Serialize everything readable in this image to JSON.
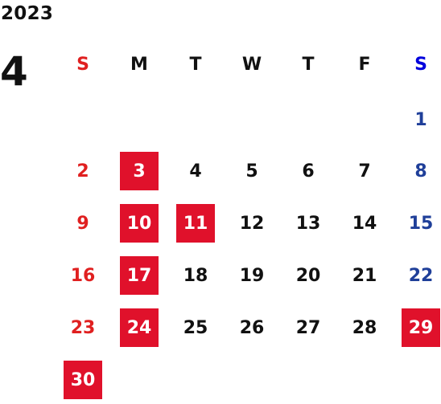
{
  "calendar": {
    "year": "2023",
    "month": "4",
    "weekdays": [
      "S",
      "M",
      "T",
      "W",
      "T",
      "F",
      "S"
    ],
    "weeks": [
      [
        {
          "d": "",
          "hl": false
        },
        {
          "d": "",
          "hl": false
        },
        {
          "d": "",
          "hl": false
        },
        {
          "d": "",
          "hl": false
        },
        {
          "d": "",
          "hl": false
        },
        {
          "d": "",
          "hl": false
        },
        {
          "d": "1",
          "hl": false
        }
      ],
      [
        {
          "d": "2",
          "hl": false
        },
        {
          "d": "3",
          "hl": true
        },
        {
          "d": "4",
          "hl": false
        },
        {
          "d": "5",
          "hl": false
        },
        {
          "d": "6",
          "hl": false
        },
        {
          "d": "7",
          "hl": false
        },
        {
          "d": "8",
          "hl": false
        }
      ],
      [
        {
          "d": "9",
          "hl": false
        },
        {
          "d": "10",
          "hl": true
        },
        {
          "d": "11",
          "hl": true
        },
        {
          "d": "12",
          "hl": false
        },
        {
          "d": "13",
          "hl": false
        },
        {
          "d": "14",
          "hl": false
        },
        {
          "d": "15",
          "hl": false
        }
      ],
      [
        {
          "d": "16",
          "hl": false
        },
        {
          "d": "17",
          "hl": true
        },
        {
          "d": "18",
          "hl": false
        },
        {
          "d": "19",
          "hl": false
        },
        {
          "d": "20",
          "hl": false
        },
        {
          "d": "21",
          "hl": false
        },
        {
          "d": "22",
          "hl": false
        }
      ],
      [
        {
          "d": "23",
          "hl": false
        },
        {
          "d": "24",
          "hl": true
        },
        {
          "d": "25",
          "hl": false
        },
        {
          "d": "26",
          "hl": false
        },
        {
          "d": "27",
          "hl": false
        },
        {
          "d": "28",
          "hl": false
        },
        {
          "d": "29",
          "hl": true
        }
      ],
      [
        {
          "d": "30",
          "hl": true
        },
        {
          "d": "",
          "hl": false
        },
        {
          "d": "",
          "hl": false
        },
        {
          "d": "",
          "hl": false
        },
        {
          "d": "",
          "hl": false
        },
        {
          "d": "",
          "hl": false
        },
        {
          "d": "",
          "hl": false
        }
      ]
    ],
    "colors": {
      "highlight_bg": "#e0112b",
      "sunday": "#e02020",
      "saturday_header": "#0000dd",
      "saturday_date": "#1f3f99",
      "weekday": "#111111"
    }
  }
}
